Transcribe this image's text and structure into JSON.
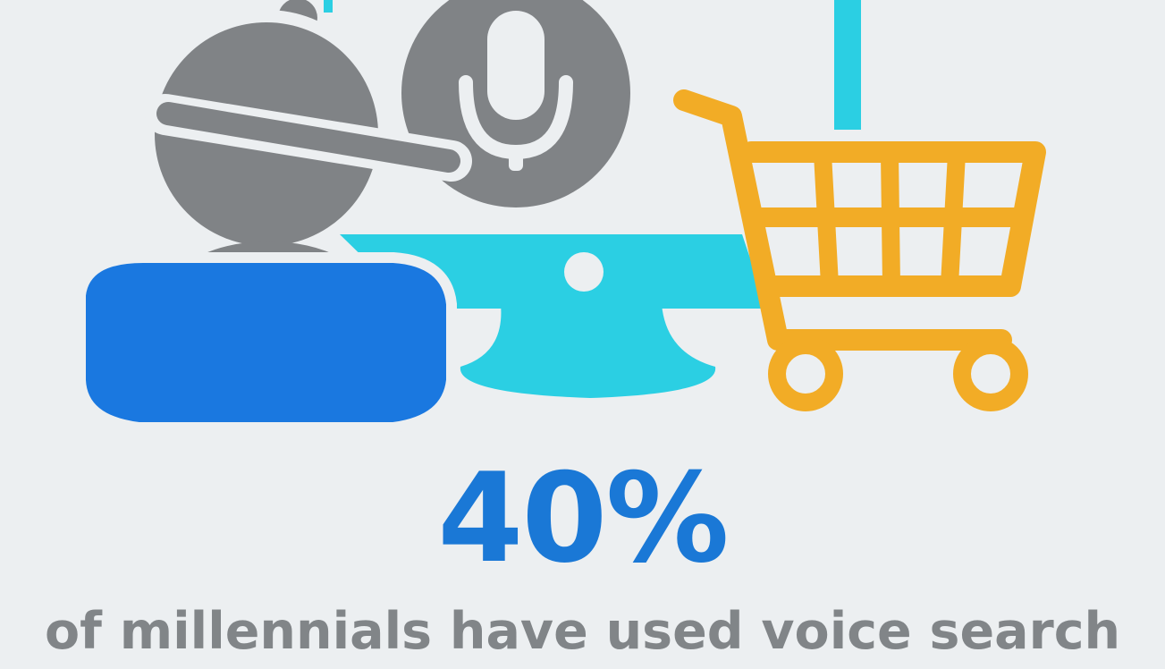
{
  "infographic": {
    "stat_value": "40%",
    "caption": "of millennials have used voice search"
  },
  "colors": {
    "background": "#eceff1",
    "stat_blue": "#1a78d6",
    "caption_gray": "#818588",
    "user_gray": "#808386",
    "shirt_blue": "#1a78e0",
    "monitor_cyan": "#2bcfe3",
    "cart_orange": "#f2ac26",
    "mic_circle_gray": "#808386"
  },
  "icons": [
    "user-with-headset-icon",
    "microphone-icon",
    "monitor-icon",
    "shopping-cart-icon"
  ]
}
